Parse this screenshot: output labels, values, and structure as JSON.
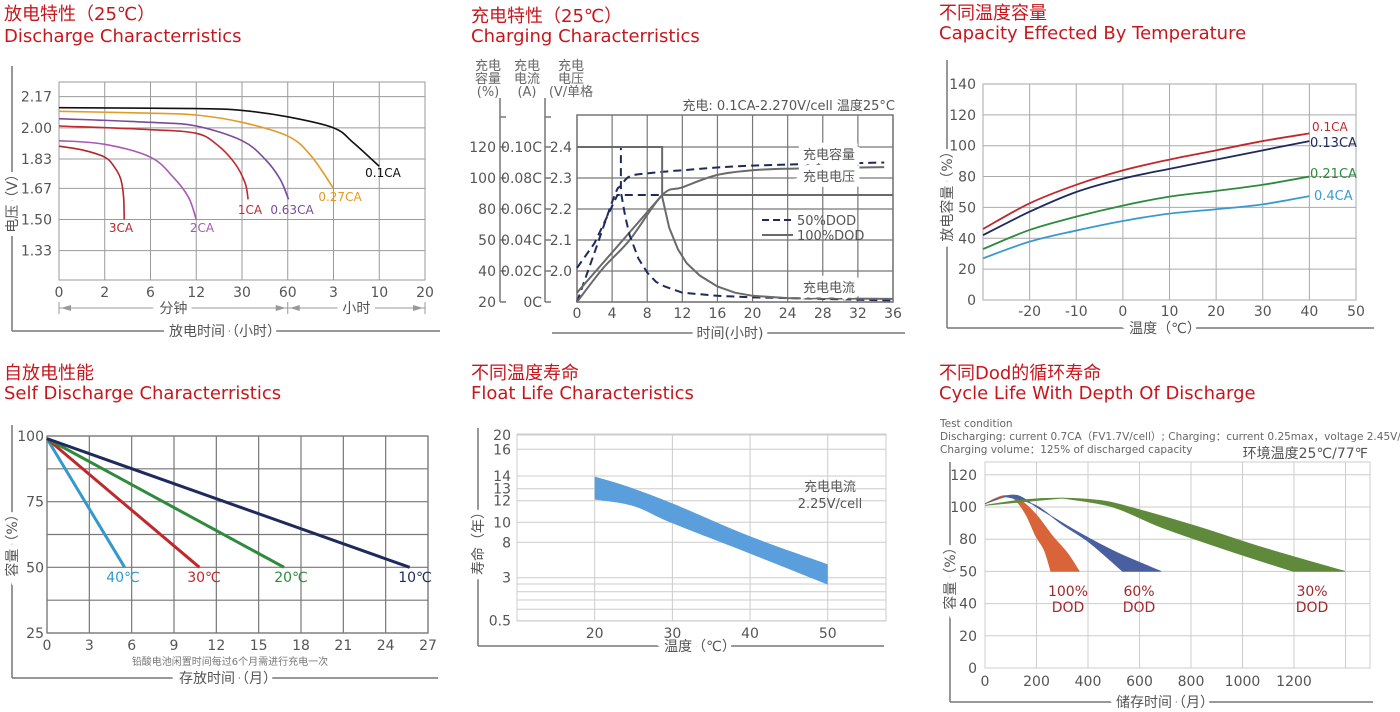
{
  "page": {
    "background": "#ffffff",
    "title_color": "#c8161d",
    "grid_color": "#9a9a9a",
    "text_color": "#555555"
  },
  "chart_data": [
    {
      "type": "line",
      "title_cn": "放电特性（25℃）",
      "title_en": "Discharge Characterristics",
      "xlabel": "放电时间（小时）",
      "ylabel": "电压（V）",
      "x_unit_minutes": "分钟",
      "x_unit_hours": "小时",
      "x_tick_labels": [
        "0",
        "2",
        "6",
        "12",
        "30",
        "60",
        "3",
        "10",
        "20"
      ],
      "x_tick_minutes": [
        0,
        2,
        6,
        12,
        30,
        60,
        180,
        600,
        1200
      ],
      "y_ticks": [
        "2.17",
        "2.00",
        "1.83",
        "1.67",
        "1.50",
        "1.33"
      ],
      "ylim": [
        1.17,
        2.25
      ],
      "series": [
        {
          "name": "0.1CA",
          "color": "#111111",
          "points": [
            [
              0,
              2.11
            ],
            [
              12,
              2.105
            ],
            [
              30,
              2.095
            ],
            [
              60,
              2.06
            ],
            [
              180,
              2.0
            ],
            [
              360,
              1.92
            ],
            [
              600,
              1.79
            ]
          ]
        },
        {
          "name": "0.27CA",
          "color": "#e39b26",
          "points": [
            [
              0,
              2.09
            ],
            [
              6,
              2.08
            ],
            [
              12,
              2.07
            ],
            [
              30,
              2.03
            ],
            [
              60,
              1.955
            ],
            [
              120,
              1.85
            ],
            [
              180,
              1.67
            ]
          ]
        },
        {
          "name": "0.63CA",
          "color": "#7a4b9c",
          "points": [
            [
              0,
              2.05
            ],
            [
              6,
              2.03
            ],
            [
              12,
              2.01
            ],
            [
              30,
              1.93
            ],
            [
              45,
              1.83
            ],
            [
              55,
              1.72
            ],
            [
              62,
              1.61
            ]
          ]
        },
        {
          "name": "1CA",
          "color": "#c0282d",
          "points": [
            [
              0,
              2.01
            ],
            [
              6,
              1.99
            ],
            [
              12,
              1.97
            ],
            [
              20,
              1.91
            ],
            [
              27,
              1.81
            ],
            [
              32,
              1.7
            ],
            [
              34,
              1.61
            ]
          ]
        },
        {
          "name": "2CA",
          "color": "#a65ab3",
          "points": [
            [
              0,
              1.93
            ],
            [
              2,
              1.91
            ],
            [
              6,
              1.84
            ],
            [
              9,
              1.73
            ],
            [
              11,
              1.62
            ],
            [
              12,
              1.5
            ]
          ]
        },
        {
          "name": "3CA",
          "color": "#b3262b",
          "points": [
            [
              0,
              1.9
            ],
            [
              1,
              1.88
            ],
            [
              2,
              1.84
            ],
            [
              2.8,
              1.79
            ],
            [
              3.4,
              1.72
            ],
            [
              3.65,
              1.62
            ],
            [
              3.7,
              1.5
            ]
          ]
        }
      ]
    },
    {
      "type": "line",
      "title_cn": "充电特性（25℃）",
      "title_en": "Charging Characterristics",
      "xlabel": "时间(小时)",
      "x_ticks": [
        "0",
        "4",
        "8",
        "12",
        "16",
        "20",
        "24",
        "28",
        "32",
        "36"
      ],
      "xlim": [
        0,
        36
      ],
      "condition": "充电: 0.1CA-2.270V/cell  温度25°C",
      "y_axes": [
        {
          "quantity": "capacity",
          "title": [
            "充电",
            "容量",
            "(%)"
          ],
          "ticks": [
            "20",
            "40",
            "50",
            "80",
            "100",
            "120"
          ]
        },
        {
          "quantity": "current",
          "title": [
            "充电",
            "电流",
            "(A)"
          ],
          "ticks": [
            "0C",
            "0.02C",
            "0.04C",
            "0.06C",
            "0.08C",
            "0.10C"
          ]
        },
        {
          "quantity": "voltage",
          "title": [
            "充电",
            "电压",
            "(V/单格"
          ],
          "ticks": [
            "",
            "2.0",
            "2.1",
            "2.2",
            "2.3",
            "2.4"
          ]
        }
      ],
      "curve_labels": {
        "capacity": "充电容量",
        "voltage": "充电电压",
        "current": "充电电流"
      },
      "legend": [
        {
          "label": "50%DOD",
          "style": "dashed",
          "color": "#1f2a5c"
        },
        {
          "label": "100%DOD",
          "style": "solid",
          "color": "#6a6a6a"
        }
      ],
      "series": [
        {
          "quantity": "capacity",
          "dod": "50%DOD",
          "points": [
            [
              0,
              20
            ],
            [
              2,
              46
            ],
            [
              4.3,
              89
            ],
            [
              5,
              95
            ],
            [
              6,
              101
            ],
            [
              8,
              103
            ],
            [
              12,
              105
            ],
            [
              20,
              108
            ],
            [
              35,
              110
            ]
          ]
        },
        {
          "quantity": "capacity",
          "dod": "100%DOD",
          "points": [
            [
              0,
              20
            ],
            [
              3,
              41
            ],
            [
              6,
              50
            ],
            [
              9.7,
              89
            ],
            [
              12,
              94
            ],
            [
              16,
              102
            ],
            [
              20,
              105
            ],
            [
              24,
              106
            ],
            [
              35,
              107
            ]
          ]
        },
        {
          "quantity": "voltage",
          "dod": "50%DOD",
          "points": [
            [
              0,
              2.01
            ],
            [
              2,
              2.09
            ],
            [
              4.6,
              2.245
            ],
            [
              9.7,
              2.245
            ]
          ]
        },
        {
          "quantity": "voltage",
          "dod": "100%DOD",
          "points": [
            [
              0,
              1.93
            ],
            [
              9.7,
              2.245
            ],
            [
              36,
              2.245
            ]
          ]
        },
        {
          "quantity": "current",
          "dod": "50%DOD",
          "points": [
            [
              0,
              0.1
            ],
            [
              5,
              0.1
            ],
            [
              5,
              0.071
            ],
            [
              5.5,
              0.055
            ],
            [
              6,
              0.043
            ],
            [
              7,
              0.028
            ],
            [
              8,
              0.019
            ],
            [
              9,
              0.013
            ],
            [
              10,
              0.01
            ],
            [
              12,
              0.006
            ],
            [
              16,
              0.004
            ],
            [
              20,
              0.003
            ],
            [
              36,
              0.001
            ]
          ]
        },
        {
          "quantity": "current",
          "dod": "100%DOD",
          "points": [
            [
              0,
              0.1
            ],
            [
              9.7,
              0.1
            ],
            [
              9.7,
              0.068
            ],
            [
              10.5,
              0.048
            ],
            [
              11.5,
              0.034
            ],
            [
              12.5,
              0.025
            ],
            [
              14,
              0.017
            ],
            [
              16,
              0.01
            ],
            [
              18,
              0.006
            ],
            [
              20,
              0.004
            ],
            [
              24,
              0.0025
            ],
            [
              36,
              0.002
            ]
          ]
        }
      ]
    },
    {
      "type": "line",
      "title_cn": "不同温度容量",
      "title_en": "Capacity Effected By Temperature",
      "xlabel": "温度（℃）",
      "ylabel": "放电容量（%）",
      "x_ticks": [
        "-20",
        "-10",
        "0",
        "10",
        "20",
        "30",
        "40",
        "50"
      ],
      "xlim": [
        -30,
        50
      ],
      "y_ticks": [
        "0",
        "20",
        "40",
        "50",
        "80",
        "100",
        "120",
        "140"
      ],
      "series": [
        {
          "name": "0.1CA",
          "color": "#c0282d",
          "points": [
            [
              -30,
              43
            ],
            [
              -20,
              54
            ],
            [
              -10,
              72
            ],
            [
              0,
              84
            ],
            [
              10,
              91
            ],
            [
              20,
              97
            ],
            [
              30,
              103
            ],
            [
              40,
              108
            ]
          ]
        },
        {
          "name": "0.13CA",
          "color": "#1f2a5c",
          "points": [
            [
              -30,
              41
            ],
            [
              -20,
              48.6
            ],
            [
              -10,
              65
            ],
            [
              0,
              78
            ],
            [
              10,
              85
            ],
            [
              20,
              91
            ],
            [
              30,
              97
            ],
            [
              40,
              103
            ]
          ]
        },
        {
          "name": "0.21CA",
          "color": "#2e8b3e",
          "points": [
            [
              -30,
              33
            ],
            [
              -20,
              42.7
            ],
            [
              -10,
              47
            ],
            [
              0,
              51.8
            ],
            [
              10,
              60.5
            ],
            [
              20,
              66
            ],
            [
              30,
              72
            ],
            [
              40,
              80
            ]
          ]
        },
        {
          "name": "0.4CA",
          "color": "#3a9ad0",
          "points": [
            [
              -30,
              27
            ],
            [
              -20,
              37.8
            ],
            [
              -10,
              42.5
            ],
            [
              0,
              45.6
            ],
            [
              10,
              48
            ],
            [
              20,
              49.4
            ],
            [
              30,
              53
            ],
            [
              40,
              61
            ]
          ]
        }
      ]
    },
    {
      "type": "line",
      "title_cn": "自放电性能",
      "title_en": "Self Discharge Characterristics",
      "xlabel": "存放时间（月）",
      "ylabel": "容量（%）",
      "note": "铅酸电池闲置时间每过6个月需进行充电一次",
      "x_ticks": [
        "0",
        "3",
        "6",
        "9",
        "12",
        "15",
        "18",
        "21",
        "24",
        "27"
      ],
      "xlim": [
        0,
        27
      ],
      "y_ticks": [
        "25",
        "50",
        "75",
        "100"
      ],
      "ylim": [
        25,
        100
      ],
      "series": [
        {
          "name": "40℃",
          "color": "#3399cc",
          "points": [
            [
              0,
              99
            ],
            [
              5.5,
              50
            ]
          ]
        },
        {
          "name": "30℃",
          "color": "#c0282d",
          "points": [
            [
              0,
              99
            ],
            [
              10.8,
              50
            ]
          ]
        },
        {
          "name": "20℃",
          "color": "#2e8b3e",
          "points": [
            [
              0,
              99
            ],
            [
              16.8,
              50
            ]
          ]
        },
        {
          "name": "10℃",
          "color": "#1f2a5c",
          "points": [
            [
              0,
              99
            ],
            [
              25.7,
              50
            ]
          ]
        }
      ]
    },
    {
      "type": "area",
      "title_cn": "不同温度寿命",
      "title_en": "Float Life Characteristics",
      "xlabel": "温度（℃）",
      "ylabel": "寿命（年）",
      "annotation": [
        "充电电流",
        "2.25V/cell"
      ],
      "x_ticks": [
        "20",
        "30",
        "40",
        "50"
      ],
      "xlim": [
        10,
        57.5
      ],
      "y_ticks": [
        "0.5",
        "3",
        "8",
        "10",
        "12",
        "13",
        "14",
        "16",
        "20"
      ],
      "band": {
        "color": "#5a9fdc",
        "upper": [
          [
            20,
            13.95
          ],
          [
            24.1,
            13.2
          ],
          [
            30,
            11.75
          ],
          [
            40,
            8.6
          ],
          [
            50,
            4.9
          ]
        ],
        "lower": [
          [
            20,
            12.1
          ],
          [
            25,
            11.5
          ],
          [
            30,
            9.9
          ],
          [
            40,
            6.4
          ],
          [
            50,
            2.6
          ]
        ]
      }
    },
    {
      "type": "area",
      "title_cn": "不同Dod的循环寿命",
      "title_en": "Cycle Life With Depth Of Discharge",
      "test_condition": [
        "Test condition",
        "Discharging: current 0.7CA（FV1.7V/cell）; Charging：current 0.25max，voltage 2.45V/cell;",
        "Charging volume：125% of discharged capacity"
      ],
      "ambient": "环境温度25℃/77℉",
      "xlabel": "储存时间（月）",
      "ylabel": "容量（%）",
      "x_ticks": [
        "0",
        "200",
        "400",
        "600",
        "800",
        "1000",
        "1200"
      ],
      "y_ticks": [
        "0",
        "20",
        "40",
        "50",
        "80",
        "100",
        "120"
      ],
      "bands": [
        {
          "label": [
            "100%",
            "DOD"
          ],
          "color": "#d9643a",
          "upper": [
            [
              0,
              102
            ],
            [
              50,
              106
            ],
            [
              90,
              107
            ],
            [
              140,
              104
            ],
            [
              200,
              95
            ],
            [
              262,
              82
            ],
            [
              320,
              67
            ],
            [
              366,
              50
            ]
          ],
          "lower": [
            [
              256,
              50
            ],
            [
              230,
              70
            ],
            [
              197,
              82
            ],
            [
              160,
              95
            ],
            [
              120,
              104
            ],
            [
              90,
              107
            ]
          ]
        },
        {
          "label": [
            "60%",
            "DOD"
          ],
          "color": "#4a5fa0",
          "upper": [
            [
              0,
              102
            ],
            [
              60,
              106
            ],
            [
              130,
              107
            ],
            [
              210,
              99
            ],
            [
              366,
              84
            ],
            [
              509,
              68
            ],
            [
              684,
              50
            ]
          ],
          "lower": [
            [
              535,
              50
            ],
            [
              405,
              77
            ],
            [
              301,
              89
            ],
            [
              197,
              101
            ],
            [
              94,
              106
            ],
            [
              60,
              106
            ]
          ]
        },
        {
          "label": [
            "30%",
            "DOD"
          ],
          "color": "#5f8a3c",
          "upper": [
            [
              0,
              101
            ],
            [
              150,
              104.5
            ],
            [
              300,
              105.5
            ],
            [
              450,
              104
            ],
            [
              561,
              100
            ],
            [
              821,
              88
            ],
            [
              1081,
              72
            ],
            [
              1398,
              50
            ]
          ],
          "lower": [
            [
              1197,
              50
            ],
            [
              951,
              69
            ],
            [
              691,
              87
            ],
            [
              496,
              100
            ],
            [
              300,
              105.5
            ]
          ]
        }
      ],
      "label_color": "#a0282d"
    }
  ]
}
